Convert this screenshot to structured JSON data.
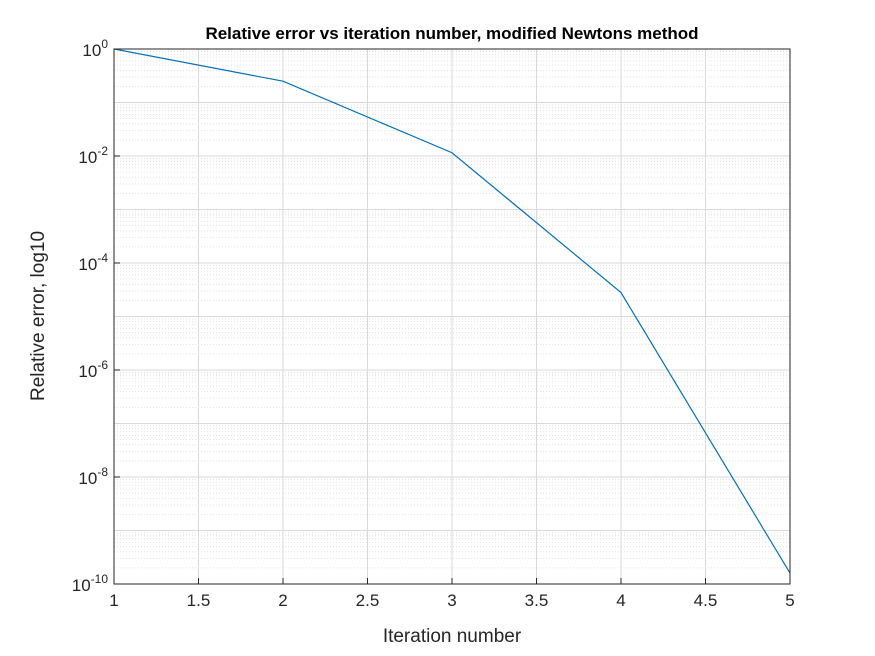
{
  "chart_data": {
    "type": "line",
    "title": "Relative error vs iteration number, modified Newtons method",
    "xlabel": "Iteration number",
    "ylabel": "Relative error, log10",
    "x": [
      1,
      2,
      3,
      4,
      5
    ],
    "series": [
      {
        "values": [
          1,
          0.25,
          0.0115,
          2.8e-05,
          1.6e-10
        ],
        "color": "#0072bd"
      }
    ],
    "xlim": [
      1,
      5
    ],
    "ylim": [
      1e-10,
      1
    ],
    "yscale": "log",
    "xticks": [
      "1",
      "1.5",
      "2",
      "2.5",
      "3",
      "3.5",
      "4",
      "4.5",
      "5"
    ],
    "yticks": [
      {
        "base": "10",
        "exp": "0"
      },
      {
        "base": "10",
        "exp": "-2"
      },
      {
        "base": "10",
        "exp": "-4"
      },
      {
        "base": "10",
        "exp": "-6"
      },
      {
        "base": "10",
        "exp": "-8"
      },
      {
        "base": "10",
        "exp": "-10"
      }
    ],
    "grid": true,
    "minor_grid": true
  }
}
